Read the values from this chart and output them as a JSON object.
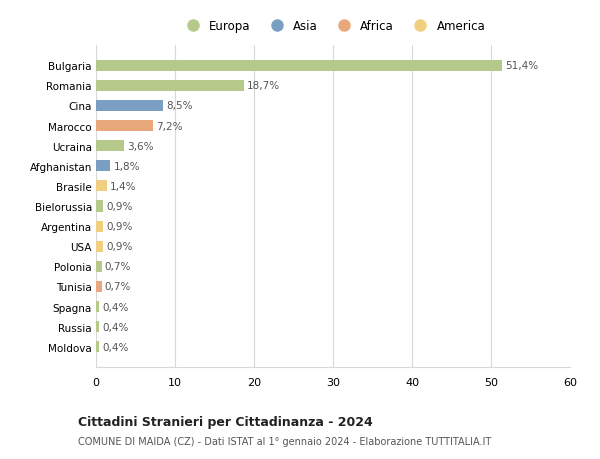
{
  "countries": [
    "Bulgaria",
    "Romania",
    "Cina",
    "Marocco",
    "Ucraina",
    "Afghanistan",
    "Brasile",
    "Bielorussia",
    "Argentina",
    "USA",
    "Polonia",
    "Tunisia",
    "Spagna",
    "Russia",
    "Moldova"
  ],
  "values": [
    51.4,
    18.7,
    8.5,
    7.2,
    3.6,
    1.8,
    1.4,
    0.9,
    0.9,
    0.9,
    0.7,
    0.7,
    0.4,
    0.4,
    0.4
  ],
  "labels": [
    "51,4%",
    "18,7%",
    "8,5%",
    "7,2%",
    "3,6%",
    "1,8%",
    "1,4%",
    "0,9%",
    "0,9%",
    "0,9%",
    "0,7%",
    "0,7%",
    "0,4%",
    "0,4%",
    "0,4%"
  ],
  "colors": [
    "#b5c98a",
    "#b5c98a",
    "#7a9fc2",
    "#e8a87c",
    "#b5c98a",
    "#7a9fc2",
    "#f0d080",
    "#b5c98a",
    "#f0d080",
    "#f0d080",
    "#b5c98a",
    "#e8a87c",
    "#b5c98a",
    "#b5c98a",
    "#b5c98a"
  ],
  "legend_labels": [
    "Europa",
    "Asia",
    "Africa",
    "America"
  ],
  "legend_colors": [
    "#b5c98a",
    "#7a9fc2",
    "#e8a87c",
    "#f0d080"
  ],
  "title": "Cittadini Stranieri per Cittadinanza - 2024",
  "subtitle": "COMUNE DI MAIDA (CZ) - Dati ISTAT al 1° gennaio 2024 - Elaborazione TUTTITALIA.IT",
  "xlim": [
    0,
    60
  ],
  "xticks": [
    0,
    10,
    20,
    30,
    40,
    50,
    60
  ],
  "background_color": "#ffffff",
  "grid_color": "#d8d8d8"
}
